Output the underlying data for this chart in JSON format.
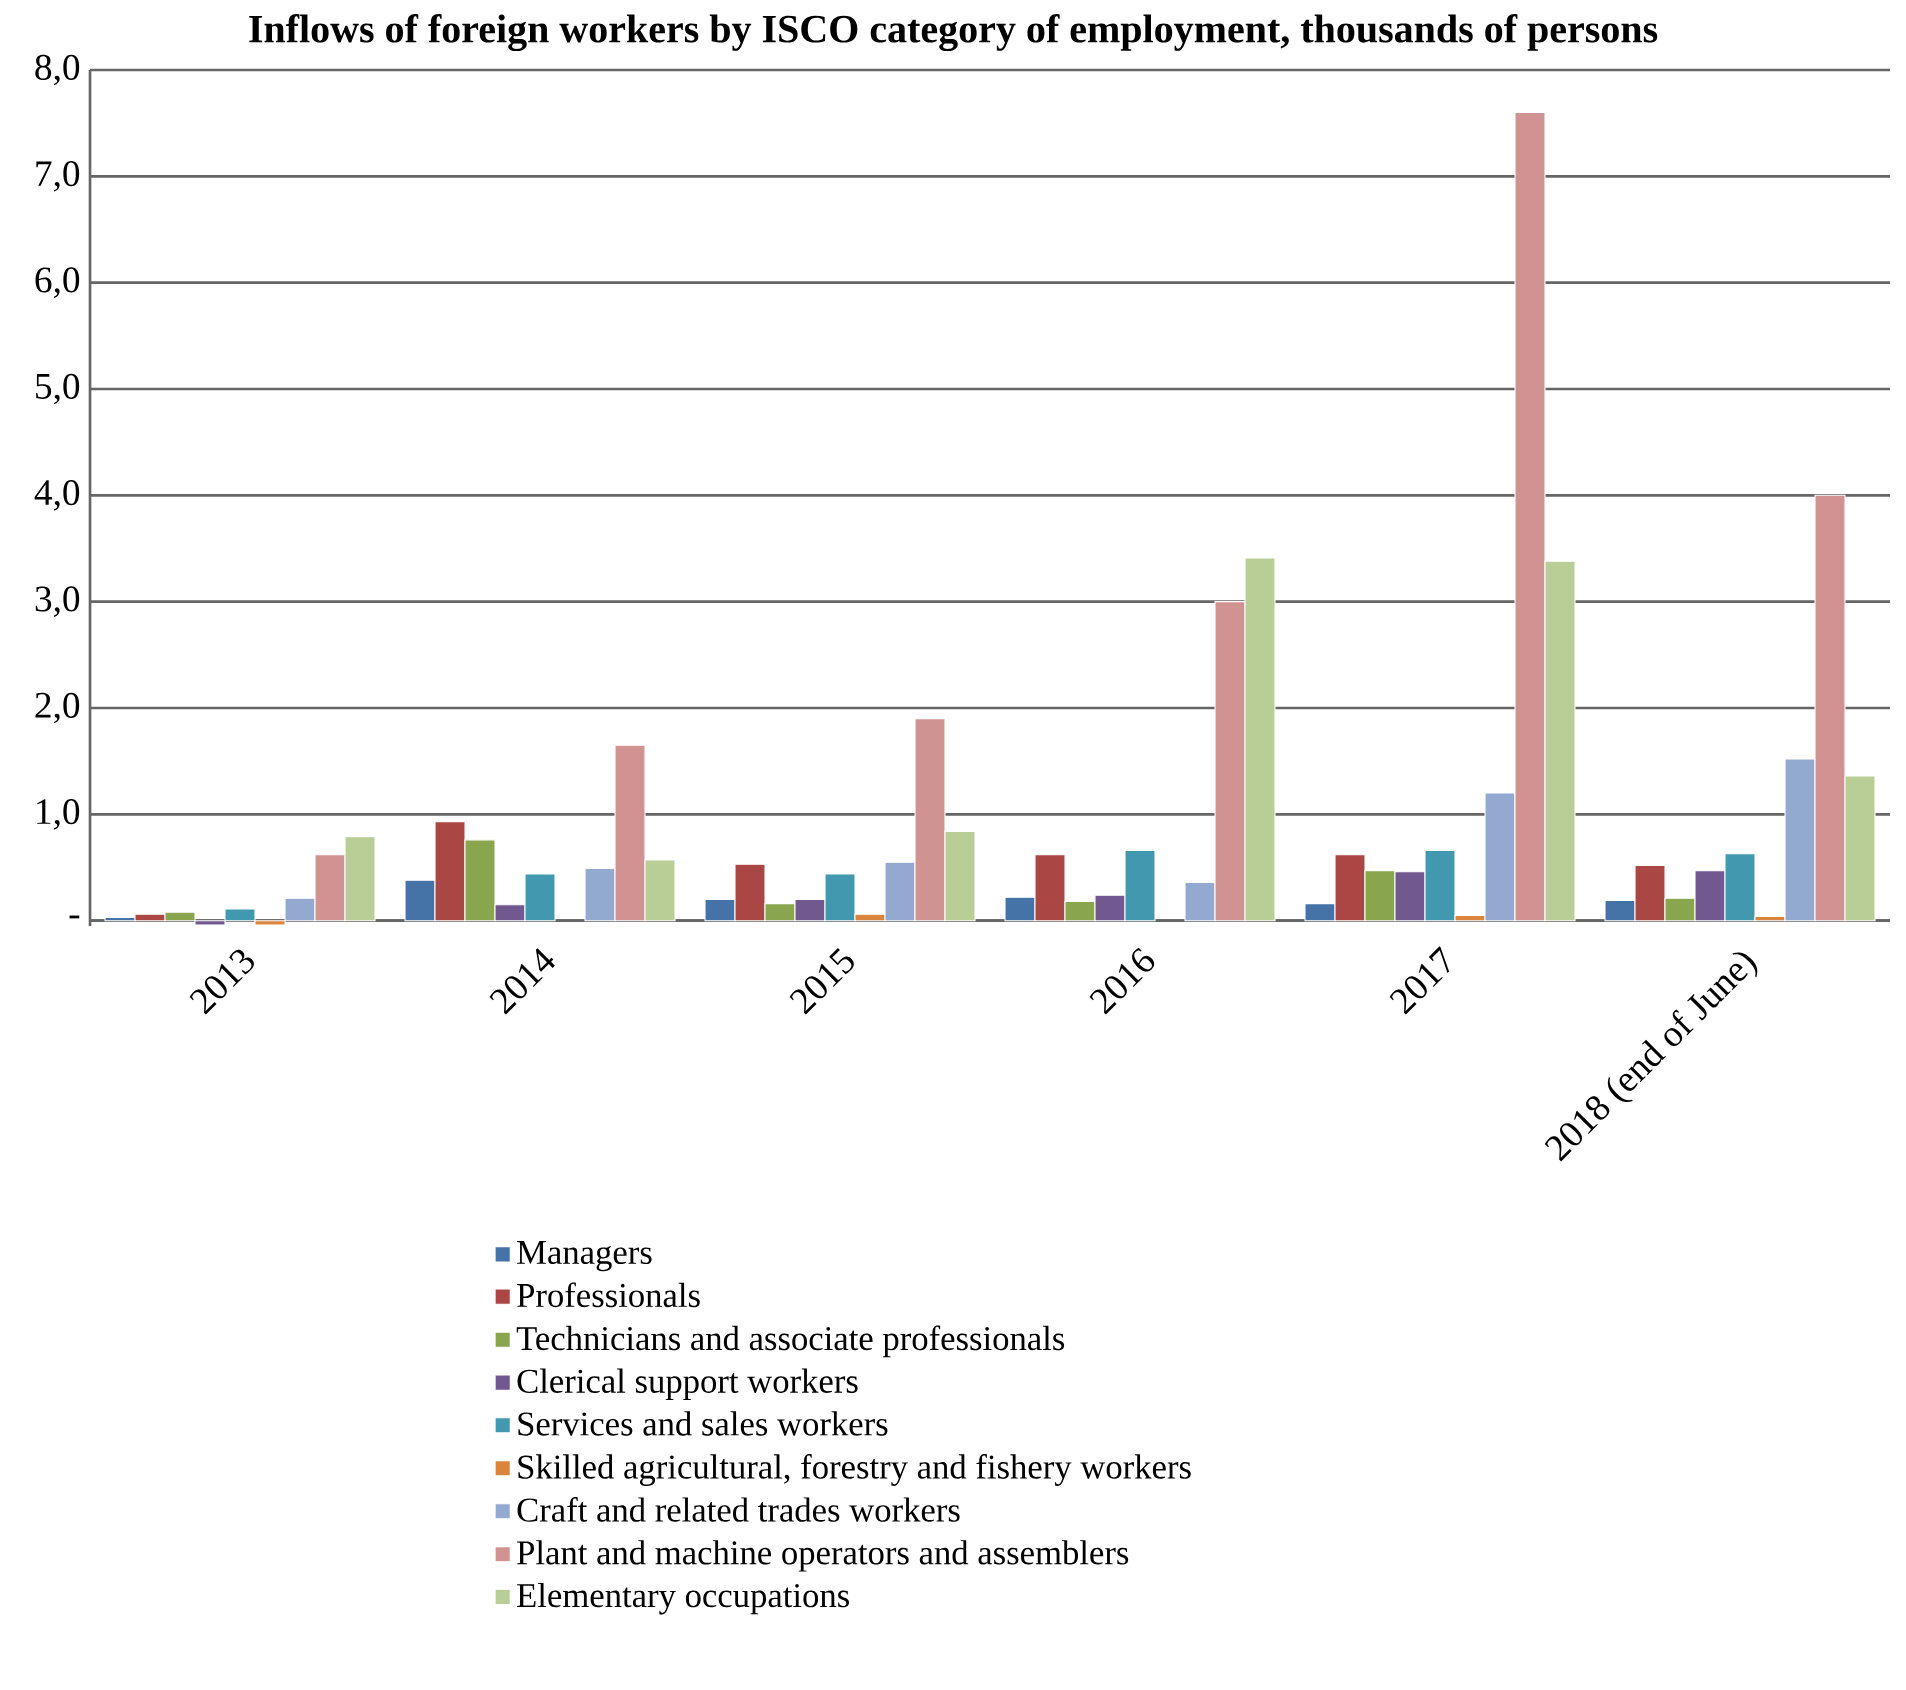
{
  "chart_data": {
    "type": "bar",
    "title": "Inflows of foreign workers by ISCO category of employment, thousands of persons",
    "categories": [
      "2013",
      "2014",
      "2015",
      "2016",
      "2017",
      "2018 (end of June)"
    ],
    "series": [
      {
        "name": "Managers",
        "color": "#4572a7",
        "values": [
          0.03,
          0.38,
          0.2,
          0.22,
          0.16,
          0.19
        ]
      },
      {
        "name": "Professionals",
        "color": "#aa4643",
        "values": [
          0.06,
          0.93,
          0.53,
          0.62,
          0.62,
          0.52
        ]
      },
      {
        "name": "Technicians and associate professionals",
        "color": "#89a54e",
        "values": [
          0.08,
          0.76,
          0.16,
          0.18,
          0.47,
          0.21
        ]
      },
      {
        "name": "Clerical support workers",
        "color": "#71588f",
        "values": [
          -0.04,
          0.15,
          0.2,
          0.24,
          0.46,
          0.47
        ]
      },
      {
        "name": "Services and sales workers",
        "color": "#4198af",
        "values": [
          0.11,
          0.44,
          0.44,
          0.66,
          0.66,
          0.63
        ]
      },
      {
        "name": "Skilled agricultural, forestry and fishery workers",
        "color": "#db843d",
        "values": [
          -0.04,
          null,
          0.06,
          null,
          0.05,
          0.04
        ]
      },
      {
        "name": "Craft and related trades workers",
        "color": "#93a9cf",
        "values": [
          0.21,
          0.49,
          0.55,
          0.36,
          1.2,
          1.52
        ]
      },
      {
        "name": "Plant and machine operators and assemblers",
        "color": "#d19392",
        "values": [
          0.62,
          1.65,
          1.9,
          3.0,
          7.6,
          4.0
        ]
      },
      {
        "name": "Elementary occupations",
        "color": "#b9cd96",
        "values": [
          0.79,
          0.57,
          0.84,
          3.41,
          3.38,
          1.36
        ]
      }
    ],
    "ylim": [
      -0.05,
      8
    ],
    "yticks": [
      {
        "value": 0,
        "label": "-"
      },
      {
        "value": 1,
        "label": "1,0"
      },
      {
        "value": 2,
        "label": "2,0"
      },
      {
        "value": 3,
        "label": "3,0"
      },
      {
        "value": 4,
        "label": "4,0"
      },
      {
        "value": 5,
        "label": "5,0"
      },
      {
        "value": 6,
        "label": "6,0"
      },
      {
        "value": 7,
        "label": "7,0"
      },
      {
        "value": 8,
        "label": "8,0"
      }
    ],
    "grid": "y",
    "legend": "bottom"
  }
}
